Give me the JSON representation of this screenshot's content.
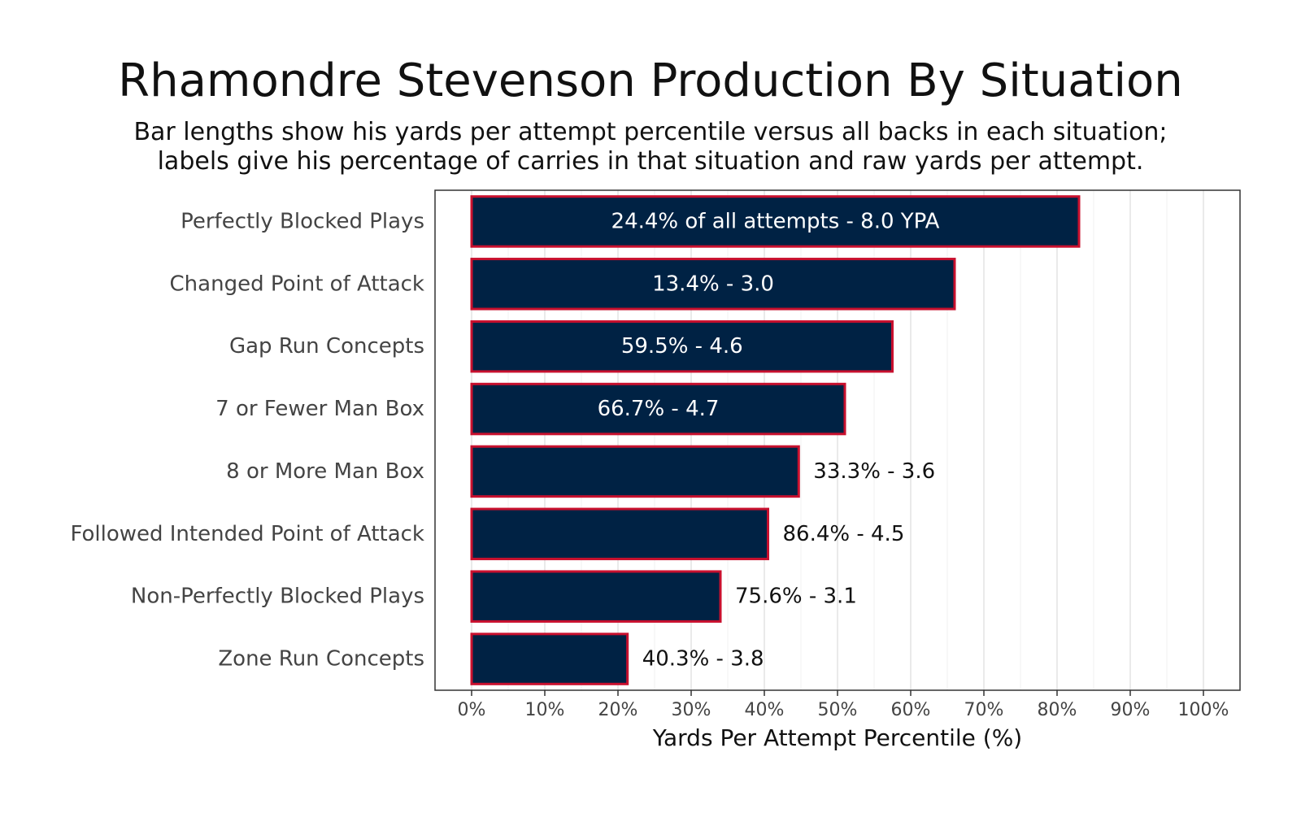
{
  "chart_data": {
    "type": "bar",
    "orientation": "horizontal",
    "title": "Rhamondre Stevenson Production By Situation",
    "subtitle_lines": [
      "Bar lengths show his yards per attempt percentile versus all backs in each situation;",
      "labels give his percentage of carries in that situation and raw yards per attempt."
    ],
    "xlabel": "Yards Per Attempt Percentile (%)",
    "xlim": [
      0,
      100
    ],
    "x_ticks": [
      "0%",
      "10%",
      "20%",
      "30%",
      "40%",
      "50%",
      "60%",
      "70%",
      "80%",
      "90%",
      "100%"
    ],
    "grid": true,
    "categories": [
      "Perfectly Blocked Plays",
      "Changed Point of Attack",
      "Gap Run Concepts",
      "7 or Fewer Man Box",
      "8 or More Man Box",
      "Followed Intended Point of Attack",
      "Non-Perfectly Blocked Plays",
      "Zone Run Concepts"
    ],
    "values": [
      83,
      66,
      57.5,
      51,
      44.7,
      40.5,
      34,
      21.3
    ],
    "labels": [
      "24.4% of all attempts - 8.0 YPA",
      "13.4% - 3.0",
      "59.5% - 4.6",
      "66.7% - 4.7",
      "33.3% - 3.6",
      "86.4% - 4.5",
      "75.6% - 3.1",
      "40.3% - 3.8"
    ],
    "label_inside": [
      true,
      true,
      true,
      true,
      false,
      false,
      false,
      false
    ],
    "colors": {
      "bar_fill": "#002244",
      "bar_stroke": "#C8102E",
      "label_inside": "#ffffff",
      "label_outside": "#111111"
    }
  }
}
